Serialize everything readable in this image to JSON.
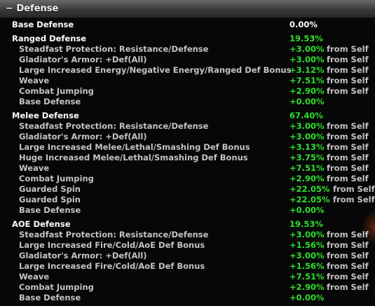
{
  "panel": {
    "collapse_glyph": "−",
    "title": "Defense"
  },
  "base_defense": {
    "label": "Base Defense",
    "value": "0.00%"
  },
  "ranged": {
    "label": "Ranged Defense",
    "value": "19.53%",
    "items": [
      {
        "label": "Steadfast Protection: Resistance/Defense",
        "value": "+3.00%",
        "source": "from Self"
      },
      {
        "label": "Gladiator's Armor: +Def(All)",
        "value": "+3.00%",
        "source": "from Self"
      },
      {
        "label": "Large Increased Energy/Negative Energy/Ranged Def Bonus",
        "value": "+3.12%",
        "source": "from Self"
      },
      {
        "label": "Weave",
        "value": "+7.51%",
        "source": "from Self"
      },
      {
        "label": "Combat Jumping",
        "value": "+2.90%",
        "source": "from Self"
      },
      {
        "label": "Base Defense",
        "value": "+0.00%",
        "source": ""
      }
    ]
  },
  "melee": {
    "label": "Melee Defense",
    "value": "67.40%",
    "items": [
      {
        "label": "Steadfast Protection: Resistance/Defense",
        "value": "+3.00%",
        "source": "from Self"
      },
      {
        "label": "Gladiator's Armor: +Def(All)",
        "value": "+3.00%",
        "source": "from Self"
      },
      {
        "label": "Large Increased Melee/Lethal/Smashing Def Bonus",
        "value": "+3.13%",
        "source": "from Self"
      },
      {
        "label": "Huge Increased Melee/Lethal/Smashing Def Bonus",
        "value": "+3.75%",
        "source": "from Self"
      },
      {
        "label": "Weave",
        "value": "+7.51%",
        "source": "from Self"
      },
      {
        "label": "Combat Jumping",
        "value": "+2.90%",
        "source": "from Self"
      },
      {
        "label": "Guarded Spin",
        "value": "+22.05%",
        "source": "from Self"
      },
      {
        "label": "Guarded Spin",
        "value": "+22.05%",
        "source": "from Self"
      },
      {
        "label": "Base Defense",
        "value": "+0.00%",
        "source": ""
      }
    ]
  },
  "aoe": {
    "label": "AOE Defense",
    "value": "19.53%",
    "items": [
      {
        "label": "Steadfast Protection: Resistance/Defense",
        "value": "+3.00%",
        "source": "from Self"
      },
      {
        "label": "Large Increased Fire/Cold/AoE Def Bonus",
        "value": "+1.56%",
        "source": "from Self"
      },
      {
        "label": "Gladiator's Armor: +Def(All)",
        "value": "+3.00%",
        "source": "from Self"
      },
      {
        "label": "Large Increased Fire/Cold/AoE Def Bonus",
        "value": "+1.56%",
        "source": "from Self"
      },
      {
        "label": "Weave",
        "value": "+7.51%",
        "source": "from Self"
      },
      {
        "label": "Combat Jumping",
        "value": "+2.90%",
        "source": "from Self"
      },
      {
        "label": "Base Defense",
        "value": "+0.00%",
        "source": ""
      }
    ]
  },
  "colors": {
    "value_green": "#2ee02e",
    "heading": "#ffffff",
    "subitem": "#c3c3c3"
  }
}
